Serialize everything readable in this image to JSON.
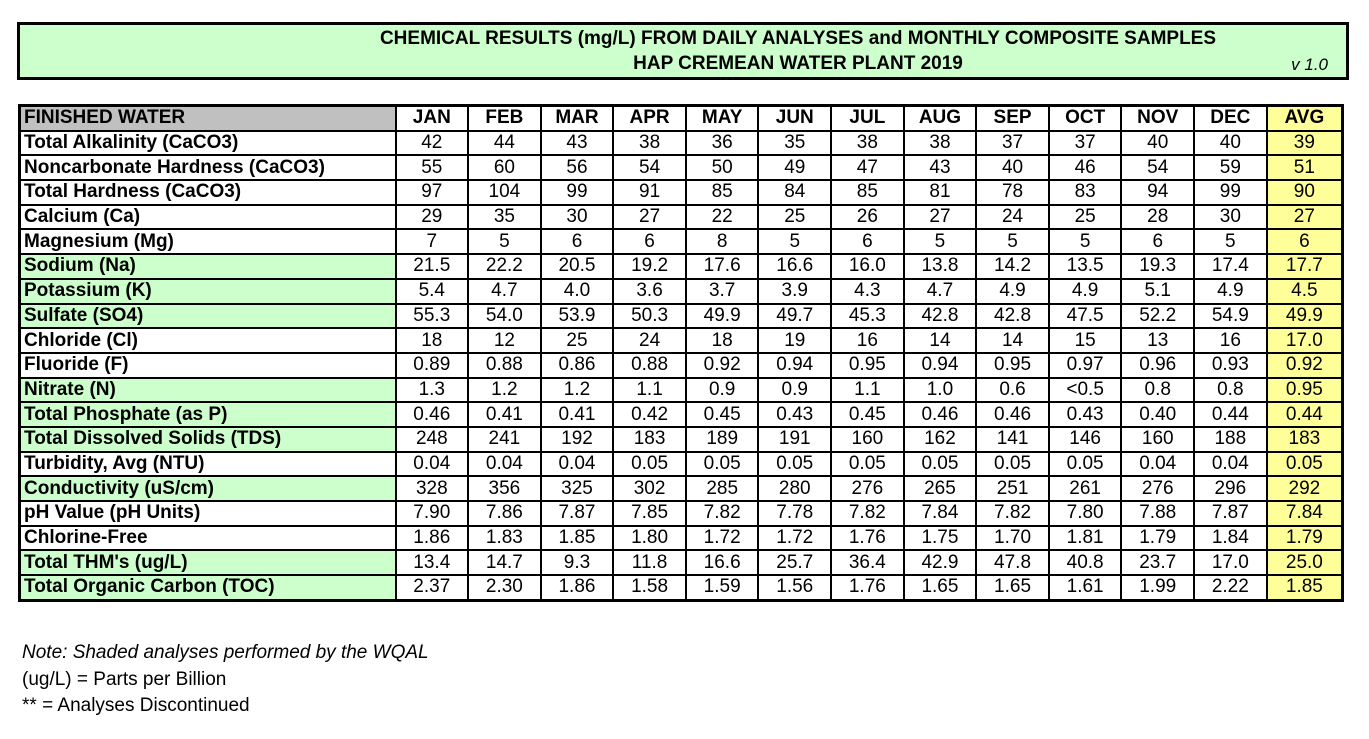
{
  "title": {
    "line1": "CHEMICAL RESULTS (mg/L)  FROM DAILY ANALYSES and MONTHLY COMPOSITE SAMPLES",
    "line2": "HAP CREMEAN WATER PLANT 2019",
    "version": "v 1.0"
  },
  "table": {
    "corner_label": "FINISHED WATER",
    "months": [
      "JAN",
      "FEB",
      "MAR",
      "APR",
      "MAY",
      "JUN",
      "JUL",
      "AUG",
      "SEP",
      "OCT",
      "NOV",
      "DEC"
    ],
    "avg_label": "AVG",
    "shaded_color": "#ccffcc",
    "avg_color": "#ffff99",
    "rows": [
      {
        "label": "Total Alkalinity  (CaCO3)",
        "shaded": false,
        "values": [
          "42",
          "44",
          "43",
          "38",
          "36",
          "35",
          "38",
          "38",
          "37",
          "37",
          "40",
          "40"
        ],
        "avg": "39"
      },
      {
        "label": "Noncarbonate Hardness (CaCO3)",
        "shaded": false,
        "values": [
          "55",
          "60",
          "56",
          "54",
          "50",
          "49",
          "47",
          "43",
          "40",
          "46",
          "54",
          "59"
        ],
        "avg": "51"
      },
      {
        "label": "Total Hardness (CaCO3)",
        "shaded": false,
        "values": [
          "97",
          "104",
          "99",
          "91",
          "85",
          "84",
          "85",
          "81",
          "78",
          "83",
          "94",
          "99"
        ],
        "avg": "90"
      },
      {
        "label": "Calcium (Ca)",
        "shaded": false,
        "values": [
          "29",
          "35",
          "30",
          "27",
          "22",
          "25",
          "26",
          "27",
          "24",
          "25",
          "28",
          "30"
        ],
        "avg": "27"
      },
      {
        "label": "Magnesium (Mg)",
        "shaded": false,
        "values": [
          "7",
          "5",
          "6",
          "6",
          "8",
          "5",
          "6",
          "5",
          "5",
          "5",
          "6",
          "5"
        ],
        "avg": "6"
      },
      {
        "label": "Sodium (Na)",
        "shaded": true,
        "values": [
          "21.5",
          "22.2",
          "20.5",
          "19.2",
          "17.6",
          "16.6",
          "16.0",
          "13.8",
          "14.2",
          "13.5",
          "19.3",
          "17.4"
        ],
        "avg": "17.7"
      },
      {
        "label": "Potassium (K)",
        "shaded": true,
        "values": [
          "5.4",
          "4.7",
          "4.0",
          "3.6",
          "3.7",
          "3.9",
          "4.3",
          "4.7",
          "4.9",
          "4.9",
          "5.1",
          "4.9"
        ],
        "avg": "4.5"
      },
      {
        "label": "Sulfate (SO4)",
        "shaded": true,
        "values": [
          "55.3",
          "54.0",
          "53.9",
          "50.3",
          "49.9",
          "49.7",
          "45.3",
          "42.8",
          "42.8",
          "47.5",
          "52.2",
          "54.9"
        ],
        "avg": "49.9"
      },
      {
        "label": "Chloride (Cl)",
        "shaded": false,
        "values": [
          "18",
          "12",
          "25",
          "24",
          "18",
          "19",
          "16",
          "14",
          "14",
          "15",
          "13",
          "16"
        ],
        "avg": "17.0"
      },
      {
        "label": "Fluoride (F)",
        "shaded": false,
        "values": [
          "0.89",
          "0.88",
          "0.86",
          "0.88",
          "0.92",
          "0.94",
          "0.95",
          "0.94",
          "0.95",
          "0.97",
          "0.96",
          "0.93"
        ],
        "avg": "0.92"
      },
      {
        "label": "Nitrate (N)",
        "shaded": true,
        "values": [
          "1.3",
          "1.2",
          "1.2",
          "1.1",
          "0.9",
          "0.9",
          "1.1",
          "1.0",
          "0.6",
          "<0.5",
          "0.8",
          "0.8"
        ],
        "avg": "0.95"
      },
      {
        "label": "Total Phosphate (as P)",
        "shaded": true,
        "values": [
          "0.46",
          "0.41",
          "0.41",
          "0.42",
          "0.45",
          "0.43",
          "0.45",
          "0.46",
          "0.46",
          "0.43",
          "0.40",
          "0.44"
        ],
        "avg": "0.44"
      },
      {
        "label": "Total Dissolved Solids (TDS)",
        "shaded": true,
        "values": [
          "248",
          "241",
          "192",
          "183",
          "189",
          "191",
          "160",
          "162",
          "141",
          "146",
          "160",
          "188"
        ],
        "avg": "183"
      },
      {
        "label": "Turbidity, Avg (NTU)",
        "shaded": false,
        "values": [
          "0.04",
          "0.04",
          "0.04",
          "0.05",
          "0.05",
          "0.05",
          "0.05",
          "0.05",
          "0.05",
          "0.05",
          "0.04",
          "0.04"
        ],
        "avg": "0.05"
      },
      {
        "label": "Conductivity (uS/cm)",
        "shaded": true,
        "values": [
          "328",
          "356",
          "325",
          "302",
          "285",
          "280",
          "276",
          "265",
          "251",
          "261",
          "276",
          "296"
        ],
        "avg": "292"
      },
      {
        "label": "pH Value (pH  Units)",
        "shaded": false,
        "values": [
          "7.90",
          "7.86",
          "7.87",
          "7.85",
          "7.82",
          "7.78",
          "7.82",
          "7.84",
          "7.82",
          "7.80",
          "7.88",
          "7.87"
        ],
        "avg": "7.84"
      },
      {
        "label": "Chlorine-Free",
        "shaded": false,
        "values": [
          "1.86",
          "1.83",
          "1.85",
          "1.80",
          "1.72",
          "1.72",
          "1.76",
          "1.75",
          "1.70",
          "1.81",
          "1.79",
          "1.84"
        ],
        "avg": "1.79"
      },
      {
        "label": "Total THM's (ug/L)",
        "shaded": true,
        "values": [
          "13.4",
          "14.7",
          "9.3",
          "11.8",
          "16.6",
          "25.7",
          "36.4",
          "42.9",
          "47.8",
          "40.8",
          "23.7",
          "17.0"
        ],
        "avg": "25.0"
      },
      {
        "label": "Total Organic Carbon (TOC)",
        "shaded": true,
        "values": [
          "2.37",
          "2.30",
          "1.86",
          "1.58",
          "1.59",
          "1.56",
          "1.76",
          "1.65",
          "1.65",
          "1.61",
          "1.99",
          "2.22"
        ],
        "avg": "1.85"
      }
    ]
  },
  "notes": {
    "note1": "Note:  Shaded analyses performed by the WQAL",
    "note2": "(ug/L) = Parts per Billion",
    "note3": "** = Analyses Discontinued"
  }
}
